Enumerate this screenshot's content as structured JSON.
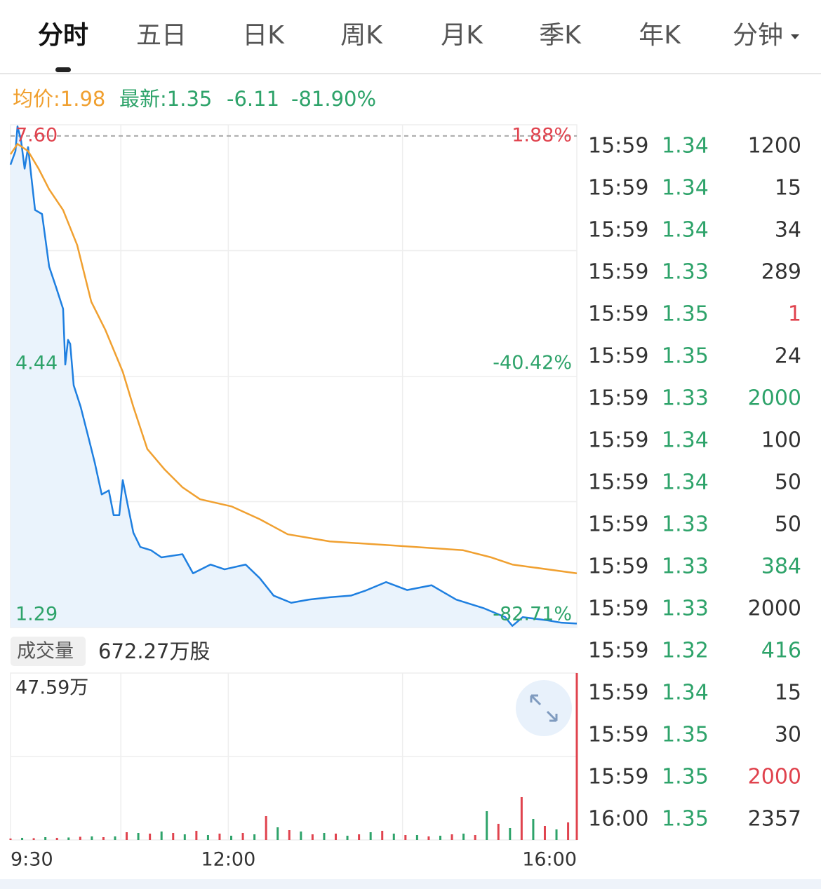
{
  "tabs": {
    "items": [
      "分时",
      "五日",
      "日K",
      "周K",
      "月K",
      "季K",
      "年K",
      "分钟"
    ],
    "active": 0
  },
  "quote": {
    "avg": "均价:1.98",
    "latest": "最新:1.35",
    "change": "-6.11",
    "change_pct": "-81.90%"
  },
  "price_chart": {
    "type": "line",
    "xlim": [
      0,
      390
    ],
    "xticks": [
      {
        "value": 0,
        "label": "9:30"
      },
      {
        "value": 150,
        "label": "12:00"
      },
      {
        "value": 390,
        "label": "16:00"
      }
    ],
    "x_grid": [
      76,
      150,
      270
    ],
    "ylim": [
      1.29,
      7.6
    ],
    "yticks": [
      {
        "value": 7.6,
        "label": "7.60"
      },
      4.44,
      1.29
    ],
    "y_grid": [
      2.87,
      4.44,
      6.02
    ],
    "y2lim": [
      -82.71,
      1.88
    ],
    "y2ticks": [
      {
        "value": 1.88,
        "label": "1.88%"
      },
      {
        "value": -40.42,
        "label": "-40.42%"
      },
      {
        "value": -82.71,
        "label": "-82.71%"
      }
    ],
    "reference_line": 7.46,
    "series": [
      {
        "color": "#1e7fe0",
        "x": [
          0,
          3.4,
          4.8,
          7.2,
          9.7,
          12.1,
          14.5,
          16.9,
          21.7,
          26.6,
          31.4,
          36.2,
          37.7,
          39.6,
          41.1,
          43.5,
          48.3,
          53.2,
          58,
          62.8,
          67.7,
          71,
          74.9,
          77.3,
          80.7,
          84.6,
          89.4,
          96.7,
          103.9,
          118.4,
          125.7,
          137.7,
          147.4,
          161.9,
          171.6,
          181.2,
          193.3,
          205.4,
          219.9,
          234.4,
          244.1,
          258.6,
          273.1,
          290,
          306.9,
          326.2,
          340.7,
          345.6,
          352.8,
          369.7,
          379.4,
          390
        ],
        "values": [
          7.1,
          7.27,
          7.58,
          7.41,
          7.05,
          7.32,
          6.92,
          6.53,
          6.48,
          5.82,
          5.56,
          5.29,
          4.59,
          4.9,
          4.85,
          4.33,
          4.06,
          3.71,
          3.36,
          2.96,
          3.01,
          2.7,
          2.7,
          3.14,
          2.83,
          2.48,
          2.3,
          2.26,
          2.17,
          2.21,
          1.97,
          2.08,
          2.02,
          2.08,
          1.91,
          1.69,
          1.6,
          1.64,
          1.67,
          1.69,
          1.75,
          1.86,
          1.76,
          1.82,
          1.64,
          1.53,
          1.42,
          1.31,
          1.42,
          1.38,
          1.35,
          1.34
        ]
      },
      {
        "color": "#f0a030",
        "x": [
          0,
          4.8,
          12.1,
          19.3,
          26.6,
          36.2,
          45.9,
          55.6,
          65.2,
          77.3,
          84.6,
          94.2,
          106.3,
          118.4,
          130.5,
          152.2,
          171.6,
          190.9,
          219.9,
          263.4,
          311.7,
          331.1,
          345.6,
          390
        ],
        "values": [
          7.23,
          7.36,
          7.27,
          7.05,
          6.79,
          6.53,
          6.09,
          5.38,
          5.03,
          4.5,
          4.06,
          3.53,
          3.27,
          3.05,
          2.9,
          2.81,
          2.65,
          2.46,
          2.37,
          2.32,
          2.26,
          2.17,
          2.08,
          1.97
        ]
      }
    ]
  },
  "volume_chart": {
    "type": "bar",
    "title": "成交量",
    "total": "672.27万股",
    "ylim": [
      0,
      47.59
    ],
    "yticks": [
      {
        "value": 47.59,
        "label": "47.59万"
      }
    ],
    "y_grid": [
      23.8
    ],
    "series": [
      {
        "color": "#e0434e",
        "x": [
          0,
          16,
          32,
          48,
          64,
          80,
          96,
          112,
          128,
          144,
          160,
          176,
          192,
          208,
          224,
          240,
          256,
          272,
          288,
          304,
          320,
          336,
          352,
          368,
          384,
          390
        ],
        "values": [
          0.4,
          0.5,
          0.6,
          0.9,
          0.8,
          2.2,
          1.8,
          2.0,
          2.6,
          1.8,
          2.0,
          6.8,
          2.8,
          1.6,
          1.8,
          1.6,
          2.6,
          1.4,
          1.0,
          1.6,
          1.4,
          4.6,
          12.2,
          4.0,
          5.0,
          47.59
        ]
      },
      {
        "color": "#2ea36a",
        "x": [
          8,
          24,
          40,
          56,
          72,
          88,
          104,
          120,
          136,
          152,
          168,
          184,
          200,
          216,
          232,
          248,
          264,
          280,
          296,
          312,
          328,
          344,
          360,
          376
        ],
        "values": [
          0.6,
          0.8,
          0.7,
          1.0,
          1.0,
          2.0,
          2.4,
          1.6,
          1.4,
          1.2,
          1.6,
          3.6,
          2.4,
          2.0,
          1.2,
          2.2,
          1.8,
          1.4,
          1.2,
          1.8,
          8.2,
          3.4,
          6.0,
          3.0
        ]
      }
    ]
  },
  "trades": {
    "price_color": "#2ea36a",
    "rows": [
      {
        "time": "15:59",
        "price": 1.34,
        "volume": 1200,
        "color": "#333333"
      },
      {
        "time": "15:59",
        "price": 1.34,
        "volume": 15,
        "color": "#333333"
      },
      {
        "time": "15:59",
        "price": 1.34,
        "volume": 34,
        "color": "#333333"
      },
      {
        "time": "15:59",
        "price": 1.33,
        "volume": 289,
        "color": "#333333"
      },
      {
        "time": "15:59",
        "price": 1.35,
        "volume": 1,
        "color": "#e0434e"
      },
      {
        "time": "15:59",
        "price": 1.35,
        "volume": 24,
        "color": "#333333"
      },
      {
        "time": "15:59",
        "price": 1.33,
        "volume": 2000,
        "color": "#2ea36a"
      },
      {
        "time": "15:59",
        "price": 1.34,
        "volume": 100,
        "color": "#333333"
      },
      {
        "time": "15:59",
        "price": 1.34,
        "volume": 50,
        "color": "#333333"
      },
      {
        "time": "15:59",
        "price": 1.33,
        "volume": 50,
        "color": "#333333"
      },
      {
        "time": "15:59",
        "price": 1.33,
        "volume": 384,
        "color": "#2ea36a"
      },
      {
        "time": "15:59",
        "price": 1.33,
        "volume": 2000,
        "color": "#333333"
      },
      {
        "time": "15:59",
        "price": 1.32,
        "volume": 416,
        "color": "#2ea36a"
      },
      {
        "time": "15:59",
        "price": 1.34,
        "volume": 15,
        "color": "#333333"
      },
      {
        "time": "15:59",
        "price": 1.35,
        "volume": 30,
        "color": "#333333"
      },
      {
        "time": "15:59",
        "price": 1.35,
        "volume": 2000,
        "color": "#e0434e"
      },
      {
        "time": "16:00",
        "price": 1.35,
        "volume": 2357,
        "color": "#333333"
      }
    ]
  }
}
